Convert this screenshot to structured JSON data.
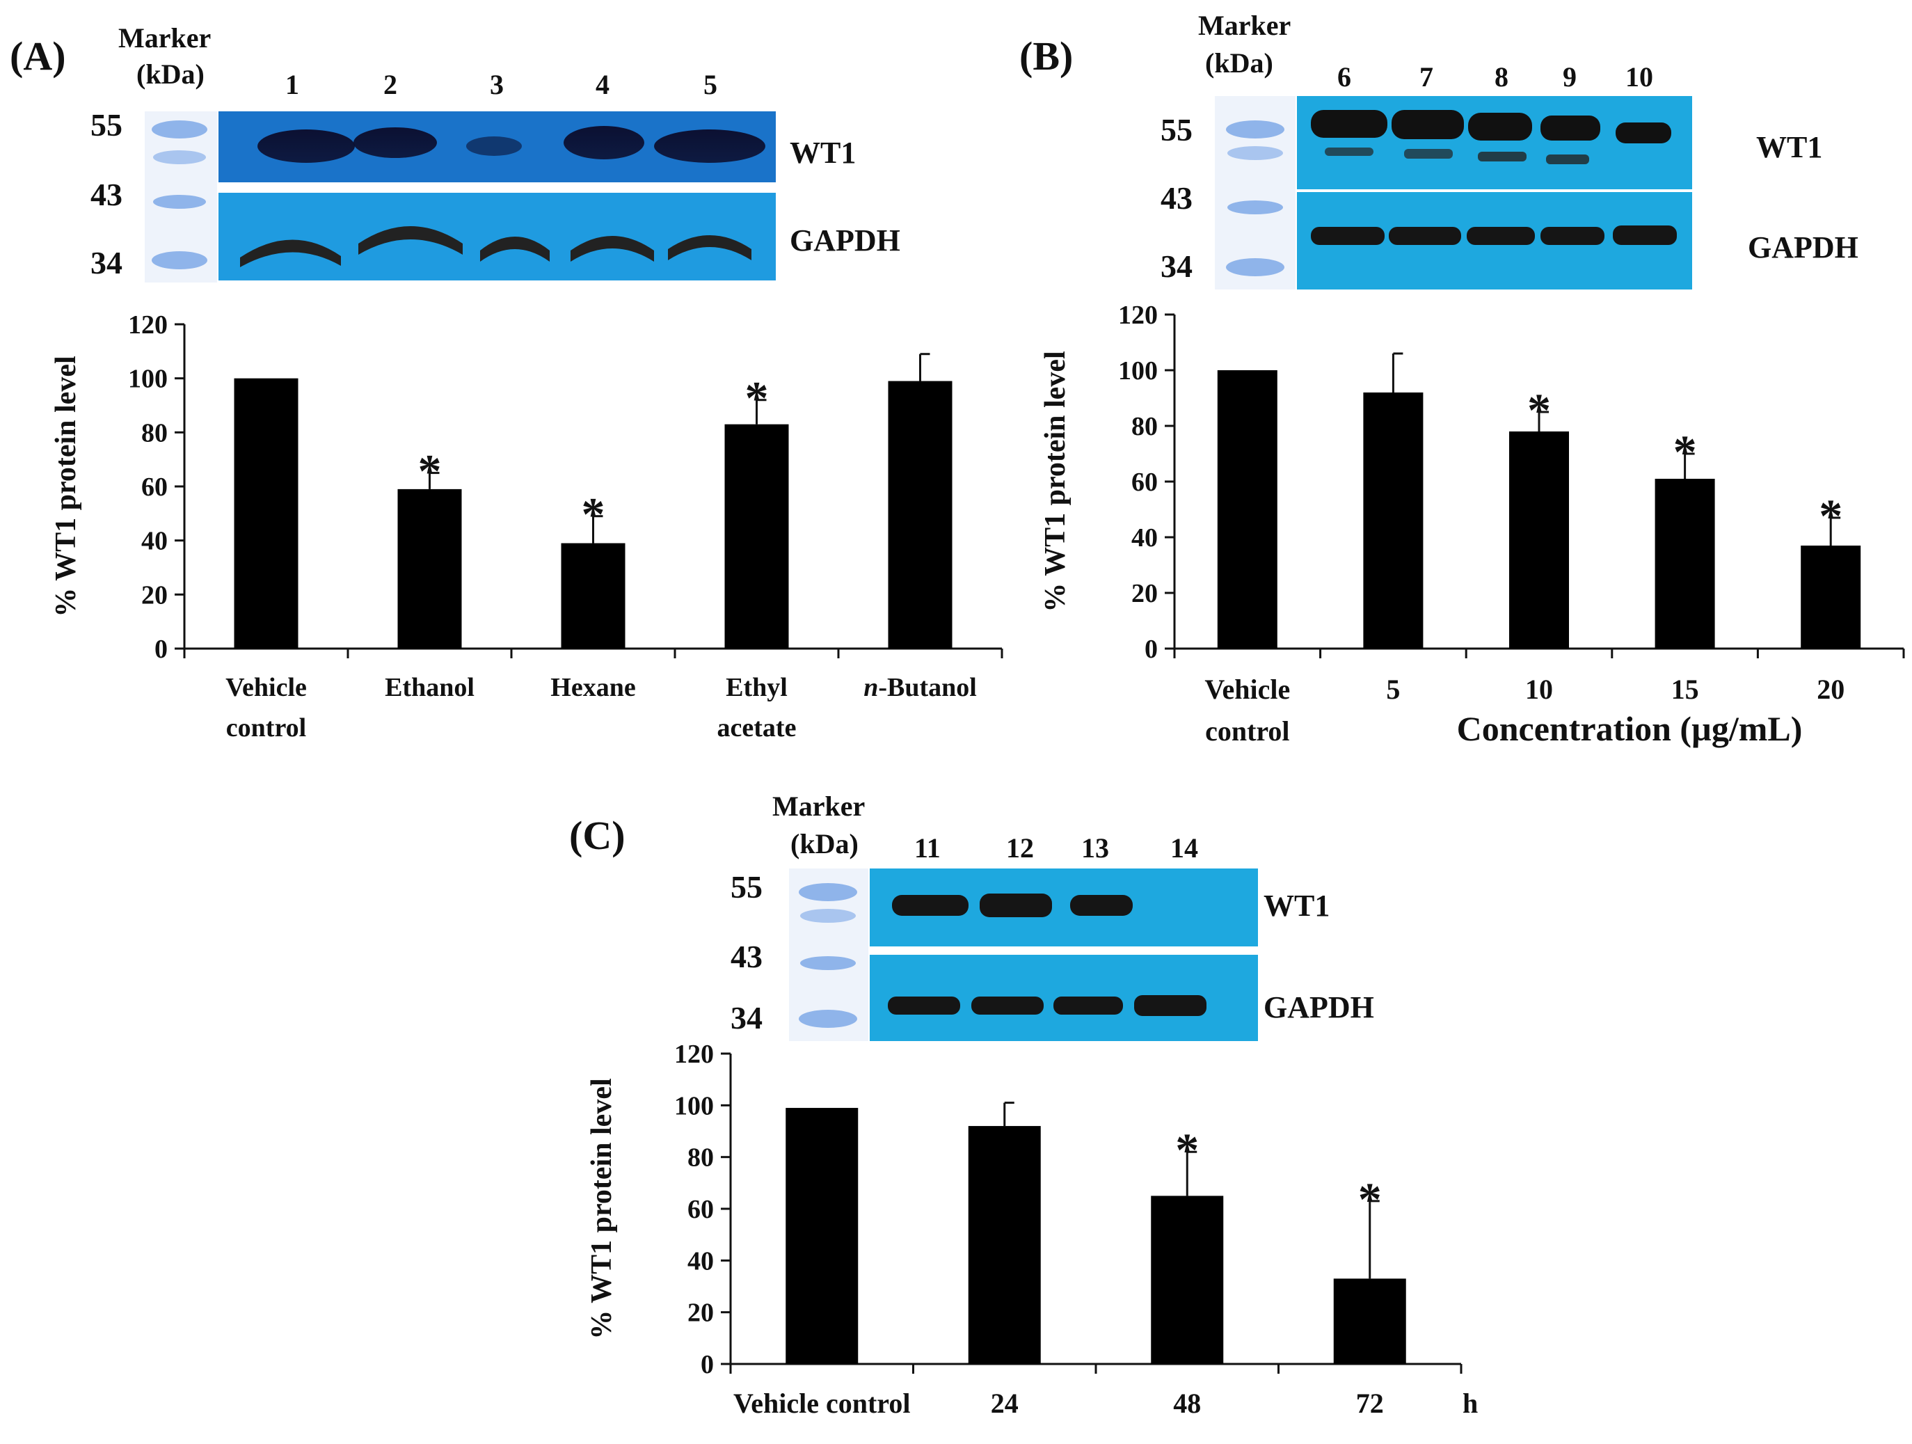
{
  "panels": [
    {
      "label": "(A)",
      "marker_title": [
        "Marker",
        "(kDa)"
      ],
      "marker_kda": [
        "55",
        "43",
        "34"
      ],
      "lanes": [
        "1",
        "2",
        "3",
        "4",
        "5"
      ],
      "blot_labels": [
        "WT1",
        "GAPDH"
      ],
      "blot_color": "#1f9be0",
      "chart_data": {
        "type": "bar",
        "categories": [
          [
            "Vehicle",
            "control"
          ],
          [
            "Ethanol"
          ],
          [
            "Hexane"
          ],
          [
            "Ethyl",
            "acetate"
          ],
          [
            "n-Butanol"
          ]
        ],
        "values": [
          100,
          59,
          39,
          83,
          99
        ],
        "errors": [
          0,
          6,
          10,
          9,
          10
        ],
        "significant": [
          false,
          true,
          true,
          true,
          false
        ],
        "ylabel": "% WT1 protein level",
        "xlabel": "",
        "ylim": [
          0,
          120
        ],
        "yticks": [
          0,
          20,
          40,
          60,
          80,
          100,
          120
        ],
        "bar_color": "#000000"
      }
    },
    {
      "label": "(B)",
      "marker_title": [
        "Marker",
        "(kDa)"
      ],
      "marker_kda": [
        "55",
        "43",
        "34"
      ],
      "lanes": [
        "6",
        "7",
        "8",
        "9",
        "10"
      ],
      "blot_labels": [
        "WT1",
        "GAPDH"
      ],
      "blot_color": "#1ea8df",
      "chart_data": {
        "type": "bar",
        "categories": [
          [
            "Vehicle",
            "control"
          ],
          [
            "5"
          ],
          [
            "10"
          ],
          [
            "15"
          ],
          [
            "20"
          ]
        ],
        "values": [
          100,
          92,
          78,
          61,
          37
        ],
        "errors": [
          0,
          14,
          7,
          9,
          10
        ],
        "significant": [
          false,
          false,
          true,
          true,
          true
        ],
        "ylabel": "% WT1 protein level",
        "xlabel": "Concentration (µg/mL)",
        "ylim": [
          0,
          120
        ],
        "yticks": [
          0,
          20,
          40,
          60,
          80,
          100,
          120
        ],
        "bar_color": "#000000"
      }
    },
    {
      "label": "(C)",
      "marker_title": [
        "Marker",
        "(kDa)"
      ],
      "marker_kda": [
        "55",
        "43",
        "34"
      ],
      "lanes": [
        "11",
        "12",
        "13",
        "14"
      ],
      "blot_labels": [
        "WT1",
        "GAPDH"
      ],
      "blot_color": "#1ea8df",
      "chart_data": {
        "type": "bar",
        "categories": [
          [
            "Vehicle control"
          ],
          [
            "24"
          ],
          [
            "48"
          ],
          [
            "72"
          ]
        ],
        "values": [
          99,
          92,
          65,
          33
        ],
        "errors": [
          0,
          9,
          17,
          30
        ],
        "significant": [
          false,
          false,
          true,
          true
        ],
        "ylabel": "% WT1 protein level",
        "xlabel": "h",
        "ylim": [
          0,
          120
        ],
        "yticks": [
          0,
          20,
          40,
          60,
          80,
          100,
          120
        ],
        "bar_color": "#000000"
      }
    }
  ],
  "significance_symbol": "*"
}
